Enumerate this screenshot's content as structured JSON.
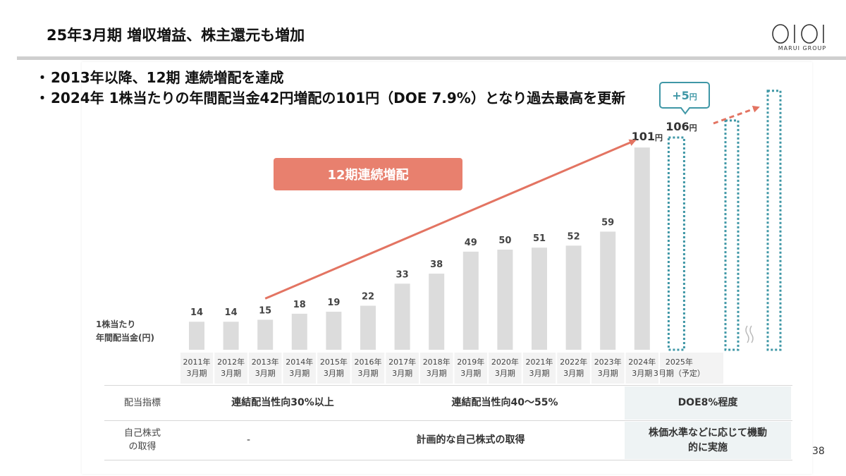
{
  "header": {
    "title": "25年3月期 増収増益、株主還元も増加",
    "logo_mark": "OIOI",
    "logo_text": "MARUI GROUP"
  },
  "bullets": [
    "2013年以降、12期 連続増配を達成",
    "2024年 1株当たりの年間配当金42円増配の101円（DOE 7.9%）となり過去最高を更新"
  ],
  "chart_data": {
    "type": "bar",
    "title": "1株当たり年間配当金(円)",
    "ylabel": "1株当たり年間配当金(円)",
    "unit": "円",
    "categories": [
      "2011年3月期",
      "2012年3月期",
      "2013年3月期",
      "2014年3月期",
      "2015年3月期",
      "2016年3月期",
      "2017年3月期",
      "2018年3月期",
      "2019年3月期",
      "2020年3月期",
      "2021年3月期",
      "2022年3月期",
      "2023年3月期",
      "2024年3月期",
      "2025年3月期（予定）"
    ],
    "category_labels": [
      [
        "2011年",
        "3月期"
      ],
      [
        "2012年",
        "3月期"
      ],
      [
        "2013年",
        "3月期"
      ],
      [
        "2014年",
        "3月期"
      ],
      [
        "2015年",
        "3月期"
      ],
      [
        "2016年",
        "3月期"
      ],
      [
        "2017年",
        "3月期"
      ],
      [
        "2018年",
        "3月期"
      ],
      [
        "2019年",
        "3月期"
      ],
      [
        "2020年",
        "3月期"
      ],
      [
        "2021年",
        "3月期"
      ],
      [
        "2022年",
        "3月期"
      ],
      [
        "2023年",
        "3月期"
      ],
      [
        "2024年",
        "3月期"
      ],
      [
        "2025年",
        "3月期（予定）"
      ]
    ],
    "values": [
      14,
      14,
      15,
      18,
      19,
      22,
      33,
      38,
      49,
      50,
      51,
      52,
      59,
      101,
      106
    ],
    "value_labels": [
      "14",
      "14",
      "15",
      "18",
      "19",
      "22",
      "33",
      "38",
      "49",
      "50",
      "51",
      "52",
      "59",
      "101円",
      "106円"
    ],
    "forecast_index": 14,
    "ylim": [
      0,
      120
    ],
    "grid": false,
    "annotations": {
      "streak_label": "12期連続増配",
      "increase_callout": "+5円"
    },
    "colors": {
      "bar": "#dcdcdc",
      "forecast": "#3f97a6",
      "accent": "#e37462",
      "streak_box": "#e8806e"
    }
  },
  "table": {
    "rows": [
      {
        "label": "配当指標",
        "cells": [
          {
            "text": "連結配当性向30%以上",
            "highlight": false
          },
          {
            "text": "連結配当性向40〜55%",
            "highlight": false
          },
          {
            "text": "DOE8%程度",
            "highlight": true
          }
        ]
      },
      {
        "label": "自己株式の取得",
        "cells": [
          {
            "text": "-",
            "highlight": false
          },
          {
            "text": "計画的な自己株式の取得",
            "highlight": false
          },
          {
            "text": "株価水準などに応じて機動的に実施",
            "highlight": true
          }
        ]
      }
    ]
  },
  "page_number": "38"
}
